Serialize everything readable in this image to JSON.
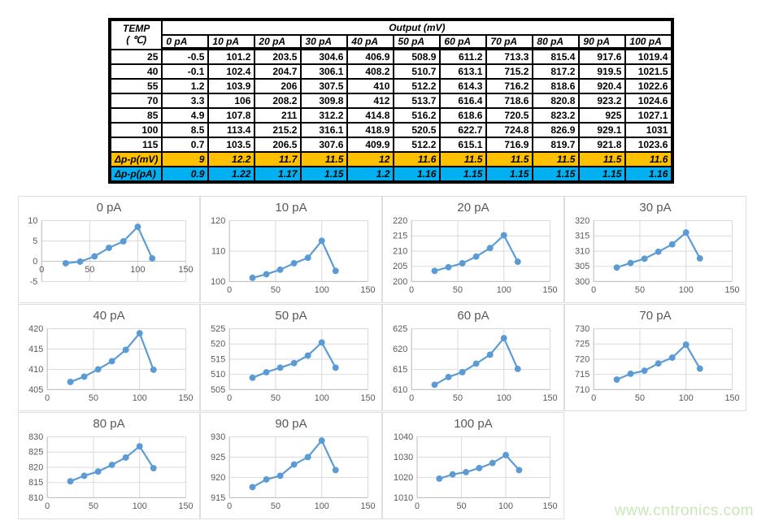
{
  "table": {
    "temp_header_line1": "TEMP",
    "temp_header_line2": "( ℃)",
    "output_header": "Output (mV)",
    "col_headers": [
      "0 pA",
      "10 pA",
      "20 pA",
      "30 pA",
      "40 pA",
      "50 pA",
      "60 pA",
      "70 pA",
      "80 pA",
      "90 pA",
      "100 pA"
    ],
    "temps": [
      25,
      40,
      55,
      70,
      85,
      100,
      115
    ],
    "rows": [
      [
        -0.5,
        101.2,
        203.5,
        304.6,
        406.9,
        508.9,
        611.2,
        713.3,
        815.4,
        917.6,
        1019.4
      ],
      [
        -0.1,
        102.4,
        204.7,
        306.1,
        408.2,
        510.7,
        613.1,
        715.2,
        817.2,
        919.5,
        1021.5
      ],
      [
        1.2,
        103.9,
        206,
        307.5,
        410,
        512.2,
        614.3,
        716.2,
        818.6,
        920.4,
        1022.6
      ],
      [
        3.3,
        106,
        208.2,
        309.8,
        412,
        513.7,
        616.4,
        718.6,
        820.8,
        923.2,
        1024.6
      ],
      [
        4.9,
        107.8,
        211,
        312.2,
        414.8,
        516.2,
        618.6,
        720.5,
        823.2,
        925,
        1027.1
      ],
      [
        8.5,
        113.4,
        215.2,
        316.1,
        418.9,
        520.5,
        622.7,
        724.8,
        826.9,
        929.1,
        1031
      ],
      [
        0.7,
        103.5,
        206.5,
        307.6,
        409.9,
        512.2,
        615.1,
        716.9,
        819.7,
        921.8,
        1023.6
      ]
    ],
    "delta_mv_label": "Δp-p(mV)",
    "delta_mv": [
      9,
      12.2,
      11.7,
      11.5,
      12,
      11.6,
      11.5,
      11.5,
      11.5,
      11.5,
      11.6
    ],
    "delta_pa_label": "Δp-p(pA)",
    "delta_pa": [
      0.9,
      1.22,
      1.17,
      1.15,
      1.2,
      1.16,
      1.15,
      1.15,
      1.15,
      1.15,
      1.16
    ],
    "colors": {
      "delta_mv_bg": "#FFC000",
      "delta_pa_bg": "#00B0F0"
    }
  },
  "chart_style": {
    "line_color": "#5B9BD5",
    "grid_color": "#D9D9D9",
    "axis_color": "#BFBFBF",
    "text_color": "#595959"
  },
  "chart_data": [
    {
      "type": "line",
      "title": "0 pA",
      "x": [
        25,
        40,
        55,
        70,
        85,
        100,
        115
      ],
      "values": [
        -0.5,
        -0.1,
        1.2,
        3.3,
        4.9,
        8.5,
        0.7
      ],
      "xlim": [
        0,
        150
      ],
      "xticks": [
        0,
        50,
        100,
        150
      ],
      "ylim": [
        -5,
        10
      ],
      "yticks": [
        -5,
        0,
        5,
        10
      ]
    },
    {
      "type": "line",
      "title": "10 pA",
      "x": [
        25,
        40,
        55,
        70,
        85,
        100,
        115
      ],
      "values": [
        101.2,
        102.4,
        103.9,
        106,
        107.8,
        113.4,
        103.5
      ],
      "xlim": [
        0,
        150
      ],
      "xticks": [
        0,
        50,
        100,
        150
      ],
      "ylim": [
        100,
        120
      ],
      "yticks": [
        100,
        110,
        120
      ]
    },
    {
      "type": "line",
      "title": "20 pA",
      "x": [
        25,
        40,
        55,
        70,
        85,
        100,
        115
      ],
      "values": [
        203.5,
        204.7,
        206,
        208.2,
        211,
        215.2,
        206.5
      ],
      "xlim": [
        0,
        150
      ],
      "xticks": [
        0,
        50,
        100,
        150
      ],
      "ylim": [
        200,
        220
      ],
      "yticks": [
        200,
        205,
        210,
        215,
        220
      ]
    },
    {
      "type": "line",
      "title": "30 pA",
      "x": [
        25,
        40,
        55,
        70,
        85,
        100,
        115
      ],
      "values": [
        304.6,
        306.1,
        307.5,
        309.8,
        312.2,
        316.1,
        307.6
      ],
      "xlim": [
        0,
        150
      ],
      "xticks": [
        0,
        50,
        100,
        150
      ],
      "ylim": [
        300,
        320
      ],
      "yticks": [
        300,
        305,
        310,
        315,
        320
      ]
    },
    {
      "type": "line",
      "title": "40 pA",
      "x": [
        25,
        40,
        55,
        70,
        85,
        100,
        115
      ],
      "values": [
        406.9,
        408.2,
        410,
        412,
        414.8,
        418.9,
        409.9
      ],
      "xlim": [
        0,
        150
      ],
      "xticks": [
        0,
        50,
        100,
        150
      ],
      "ylim": [
        405,
        420
      ],
      "yticks": [
        405,
        410,
        415,
        420
      ]
    },
    {
      "type": "line",
      "title": "50 pA",
      "x": [
        25,
        40,
        55,
        70,
        85,
        100,
        115
      ],
      "values": [
        508.9,
        510.7,
        512.2,
        513.7,
        516.2,
        520.5,
        512.2
      ],
      "xlim": [
        0,
        150
      ],
      "xticks": [
        0,
        50,
        100,
        150
      ],
      "ylim": [
        505,
        525
      ],
      "yticks": [
        505,
        510,
        515,
        520,
        525
      ]
    },
    {
      "type": "line",
      "title": "60 pA",
      "x": [
        25,
        40,
        55,
        70,
        85,
        100,
        115
      ],
      "values": [
        611.2,
        613.1,
        614.3,
        616.4,
        618.6,
        622.7,
        615.1
      ],
      "xlim": [
        0,
        150
      ],
      "xticks": [
        0,
        50,
        100,
        150
      ],
      "ylim": [
        610,
        625
      ],
      "yticks": [
        610,
        615,
        620,
        625
      ]
    },
    {
      "type": "line",
      "title": "70 pA",
      "x": [
        25,
        40,
        55,
        70,
        85,
        100,
        115
      ],
      "values": [
        713.3,
        715.2,
        716.2,
        718.6,
        720.5,
        724.8,
        716.9
      ],
      "xlim": [
        0,
        150
      ],
      "xticks": [
        0,
        50,
        100,
        150
      ],
      "ylim": [
        710,
        730
      ],
      "yticks": [
        710,
        715,
        720,
        725,
        730
      ]
    },
    {
      "type": "line",
      "title": "80 pA",
      "x": [
        25,
        40,
        55,
        70,
        85,
        100,
        115
      ],
      "values": [
        815.4,
        817.2,
        818.6,
        820.8,
        823.2,
        826.9,
        819.7
      ],
      "xlim": [
        0,
        150
      ],
      "xticks": [
        0,
        50,
        100,
        150
      ],
      "ylim": [
        810,
        830
      ],
      "yticks": [
        810,
        815,
        820,
        825,
        830
      ]
    },
    {
      "type": "line",
      "title": "90 pA",
      "x": [
        25,
        40,
        55,
        70,
        85,
        100,
        115
      ],
      "values": [
        917.6,
        919.5,
        920.4,
        923.2,
        925,
        929.1,
        921.8
      ],
      "xlim": [
        0,
        150
      ],
      "xticks": [
        0,
        50,
        100,
        150
      ],
      "ylim": [
        915,
        930
      ],
      "yticks": [
        915,
        920,
        925,
        930
      ]
    },
    {
      "type": "line",
      "title": "100 pA",
      "x": [
        25,
        40,
        55,
        70,
        85,
        100,
        115
      ],
      "values": [
        1019.4,
        1021.5,
        1022.6,
        1024.6,
        1027.1,
        1031,
        1023.6
      ],
      "xlim": [
        0,
        150
      ],
      "xticks": [
        0,
        50,
        100,
        150
      ],
      "ylim": [
        1010,
        1040
      ],
      "yticks": [
        1010,
        1020,
        1030,
        1040
      ]
    }
  ],
  "watermark": {
    "text": "www.cntronics.com",
    "color": "#C9E7B6"
  }
}
